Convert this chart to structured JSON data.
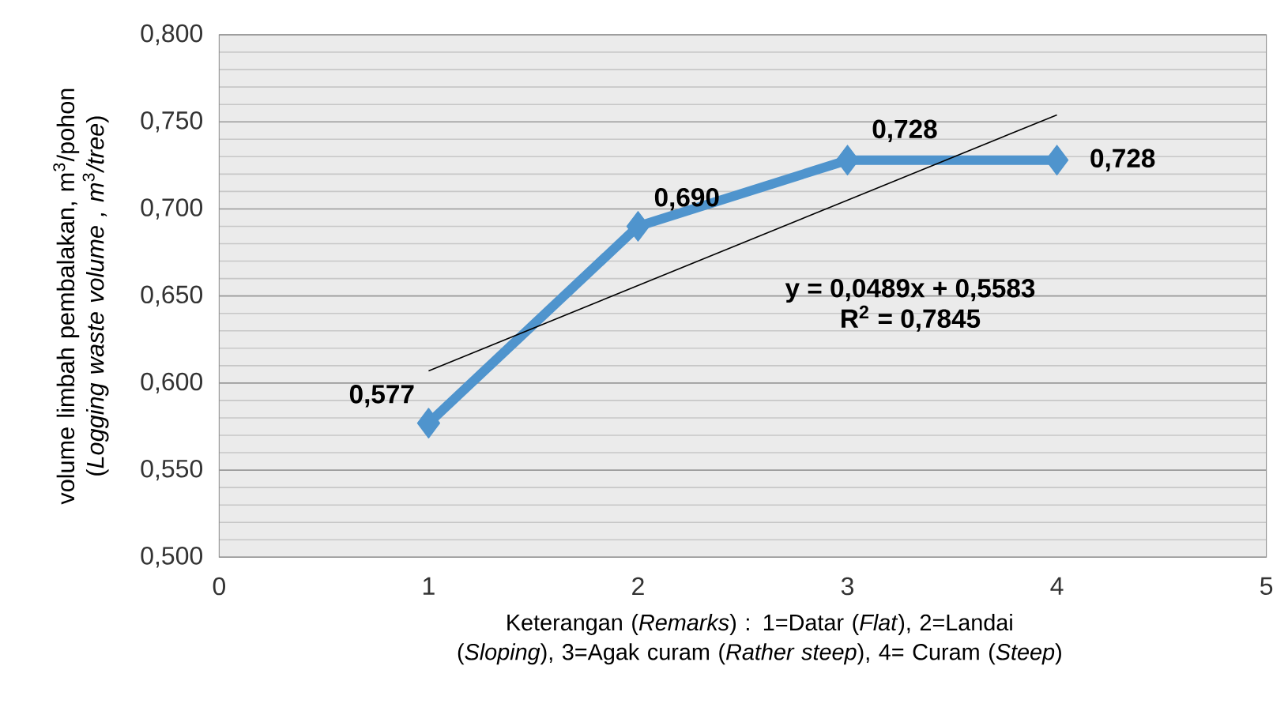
{
  "chart_data": {
    "type": "line",
    "xlabel": "Keterangan (*Remarks*) : 1=Datar (*Flat*), 2=Landai  (*Sloping*), 3=Agak curam (*Rather steep*), 4= Curam (*Steep*)",
    "ylabel": "volume limbah pembalakan, m$^{3}$/pohon (*Logging waste volume , m*$^{3}$*/tree*)",
    "x": [
      1,
      2,
      3,
      4
    ],
    "series": [
      {
        "color": "#4f94cd",
        "values": [
          0.577,
          0.69,
          0.728,
          0.728
        ],
        "value_labels": [
          "0,577",
          "0,690",
          "0,728",
          "0,728"
        ],
        "marker": "diamond"
      },
      {
        "type": "line",
        "color": "#000000",
        "x": [
          1,
          4
        ],
        "values": [
          0.607,
          0.754
        ],
        "marker": "none"
      }
    ],
    "annotations": [
      "y = 0,0489x + 0,5583",
      "R$^{2}$ = 0,7845"
    ],
    "xlim": [
      0,
      5
    ],
    "xticks": [
      0,
      1,
      2,
      3,
      4,
      5
    ],
    "ylim": [
      0.5,
      0.8
    ],
    "yticks": [
      {
        "value": 0.5,
        "label": "0,500"
      },
      {
        "value": 0.55,
        "label": "0,550"
      },
      {
        "value": 0.6,
        "label": "0,600"
      },
      {
        "value": 0.65,
        "label": "0,650"
      },
      {
        "value": 0.7,
        "label": "0,700"
      },
      {
        "value": 0.75,
        "label": "0,750"
      },
      {
        "value": 0.8,
        "label": "0,800"
      }
    ],
    "grid": "y",
    "line_style": "solid"
  }
}
